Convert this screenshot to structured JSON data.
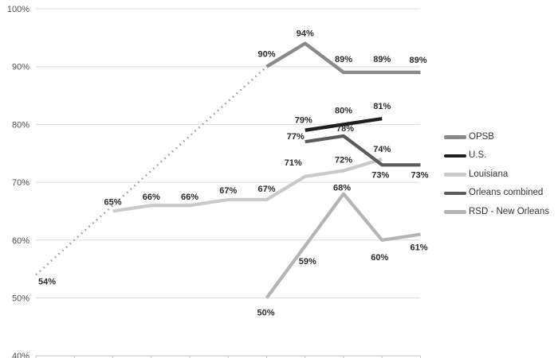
{
  "colors": {
    "background": "#ffffff",
    "grid": "#dcdcdc",
    "axis": "#c3c3c3",
    "data_label": "#2b2b2b",
    "y_tick_label": "#4f4f4f",
    "legend_text": "#333333"
  },
  "legend": {
    "items": [
      {
        "label": "OPSB",
        "color": "#8a8a8a"
      },
      {
        "label": "U.S.",
        "color": "#1f1f1f"
      },
      {
        "label": "Louisiana",
        "color": "#cacaca"
      },
      {
        "label": "Orleans combined",
        "color": "#5b5b5b"
      },
      {
        "label": "RSD - New Orleans",
        "color": "#b4b4b4"
      }
    ]
  },
  "chart_data": {
    "type": "line",
    "title": "",
    "xlabel": "",
    "ylabel": "",
    "grid": true,
    "legend_position": "right",
    "y_axis": {
      "min": 40,
      "max": 100,
      "step": 10,
      "ticks": [
        {
          "v": 100,
          "label": "100%"
        },
        {
          "v": 90,
          "label": "90%"
        },
        {
          "v": 80,
          "label": "80%"
        },
        {
          "v": 70,
          "label": "70%"
        },
        {
          "v": 60,
          "label": "60%"
        },
        {
          "v": 50,
          "label": "50%"
        },
        {
          "v": 40,
          "label": "40%"
        }
      ]
    },
    "x_axis": {
      "tick_count": 11,
      "labels": []
    },
    "series": [
      {
        "id": "opsb-projection",
        "name": "OPSB (dotted segment)",
        "color": "#a6a6a6",
        "width": 2.6,
        "dash": "dotted",
        "points": [
          {
            "x": 0,
            "v": 54,
            "label": "54%",
            "pos": "below",
            "dx": 14,
            "dy": 12
          },
          {
            "x": 6,
            "v": 90
          }
        ]
      },
      {
        "id": "louisiana",
        "name": "Louisiana",
        "color": "#cacaca",
        "width": 4.2,
        "points": [
          {
            "x": 2,
            "v": 65,
            "label": "65%",
            "pos": "above",
            "dy": -8
          },
          {
            "x": 3,
            "v": 66,
            "label": "66%",
            "pos": "above",
            "dy": -7
          },
          {
            "x": 4,
            "v": 66,
            "label": "66%",
            "pos": "above",
            "dy": -7
          },
          {
            "x": 5,
            "v": 67,
            "label": "67%",
            "pos": "above",
            "dy": -8
          },
          {
            "x": 6,
            "v": 67,
            "label": "67%",
            "pos": "above",
            "dy": -10
          },
          {
            "x": 7,
            "v": 71,
            "label": "71%",
            "pos": "above",
            "dx": -15,
            "dy": -14
          },
          {
            "x": 8,
            "v": 72,
            "label": "72%",
            "pos": "above",
            "dy": -10
          },
          {
            "x": 9,
            "v": 74,
            "label": "74%",
            "pos": "above",
            "dy": -9
          }
        ]
      },
      {
        "id": "rsd-new-orleans",
        "name": "RSD - New Orleans",
        "color": "#b4b4b4",
        "width": 4.2,
        "points": [
          {
            "x": 6,
            "v": 50,
            "label": "50%",
            "pos": "below",
            "dy": 22,
            "dx": -1
          },
          {
            "x": 7,
            "v": 59,
            "label": "59%",
            "pos": "below",
            "dy": 23,
            "dx": 3
          },
          {
            "x": 8,
            "v": 68,
            "label": "68%",
            "pos": "above",
            "dy": -4,
            "dx": -2
          },
          {
            "x": 9,
            "v": 60,
            "label": "60%",
            "pos": "below",
            "dy": 25,
            "dx": -3
          },
          {
            "x": 10,
            "v": 61,
            "label": "61%",
            "pos": "below",
            "dy": 20,
            "dx": -2
          }
        ]
      },
      {
        "id": "orleans-combined",
        "name": "Orleans combined",
        "color": "#5b5b5b",
        "width": 4.2,
        "points": [
          {
            "x": 7,
            "v": 77,
            "label": "77%",
            "pos": "above",
            "dx": -12,
            "dy": -3
          },
          {
            "x": 8,
            "v": 78,
            "label": "78%",
            "pos": "above",
            "dx": 2,
            "dy": -6
          },
          {
            "x": 9,
            "v": 73,
            "label": "73%",
            "pos": "below",
            "dy": 16,
            "dx": -2
          },
          {
            "x": 10,
            "v": 73,
            "label": "73%",
            "pos": "below",
            "dy": 16,
            "dx": -1
          }
        ]
      },
      {
        "id": "opsb",
        "name": "OPSB",
        "color": "#8a8a8a",
        "width": 4.4,
        "points": [
          {
            "x": 6,
            "v": 90,
            "label": "90%",
            "pos": "above",
            "dy": -12
          },
          {
            "x": 7,
            "v": 94,
            "label": "94%",
            "pos": "above",
            "dy": -9
          },
          {
            "x": 8,
            "v": 89,
            "label": "89%",
            "pos": "above",
            "dy": -13
          },
          {
            "x": 9,
            "v": 89,
            "label": "89%",
            "pos": "above",
            "dy": -13
          },
          {
            "x": 10,
            "v": 89,
            "label": "89%",
            "pos": "above",
            "dy": -12,
            "dx": -3
          }
        ]
      },
      {
        "id": "us",
        "name": "U.S.",
        "color": "#1f1f1f",
        "width": 4.4,
        "points": [
          {
            "x": 7,
            "v": 79,
            "label": "79%",
            "pos": "above",
            "dx": -2,
            "dy": -9
          },
          {
            "x": 8,
            "v": 80,
            "label": "80%",
            "pos": "above",
            "dy": -14
          },
          {
            "x": 9,
            "v": 81,
            "label": "81%",
            "pos": "above",
            "dy": -12
          }
        ]
      }
    ]
  }
}
